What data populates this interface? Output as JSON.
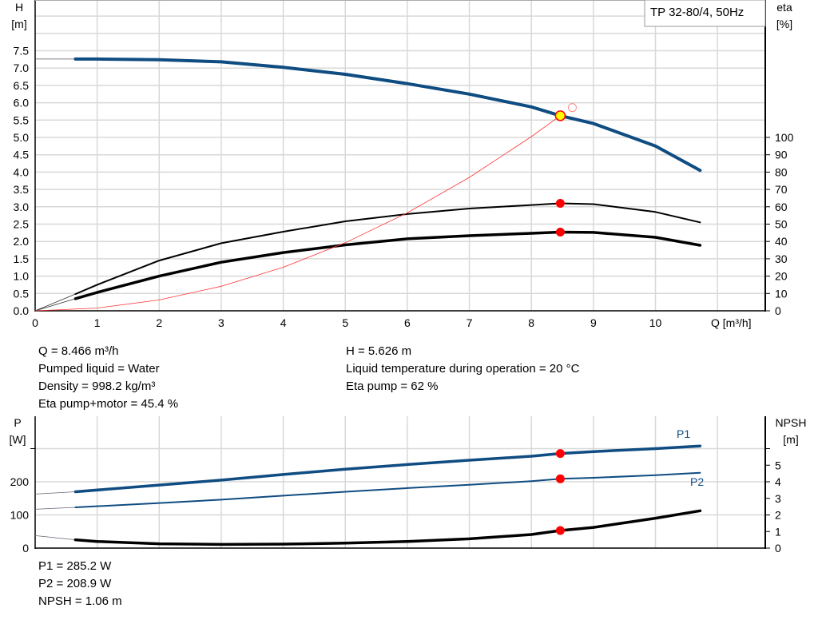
{
  "chart_data": [
    {
      "type": "line",
      "title": "TP 32-80/4, 50Hz",
      "xlabel": "Q [m³/h]",
      "ylabel_left": [
        "H",
        "[m]"
      ],
      "ylabel_right": [
        "eta",
        "[%]"
      ],
      "xlim": [
        0,
        11.77
      ],
      "ylim_left": [
        0,
        9
      ],
      "ylim_right_ticks": [
        0,
        10,
        20,
        30,
        40,
        50,
        60,
        70,
        80,
        90,
        100
      ],
      "x_ticks": [
        "0",
        "1",
        "2",
        "3",
        "4",
        "5",
        "6",
        "7",
        "8",
        "9",
        "10"
      ],
      "y_ticks_left": [
        "0.0",
        "0.5",
        "1.0",
        "1.5",
        "2.0",
        "2.5",
        "3.0",
        "3.5",
        "4.0",
        "4.5",
        "5.0",
        "5.5",
        "6.0",
        "6.5",
        "7.0",
        "7.5"
      ],
      "grid": true,
      "series": [
        {
          "key": "head",
          "axis": "left",
          "color": "#0f4c81",
          "x": [
            0.65,
            1,
            2,
            3,
            4,
            5,
            6,
            7,
            8,
            8.466,
            9,
            10,
            10.72
          ],
          "y": [
            7.26,
            7.26,
            7.24,
            7.18,
            7.02,
            6.82,
            6.55,
            6.25,
            5.88,
            5.626,
            5.4,
            4.75,
            4.05
          ],
          "extension": {
            "x": [
              0,
              0.65
            ],
            "y": [
              7.26,
              7.26
            ]
          }
        },
        {
          "key": "eta_pump",
          "axis": "right",
          "color": "#000000",
          "x": [
            0.65,
            1,
            2,
            3,
            4,
            5,
            6,
            7,
            8,
            8.466,
            9,
            10,
            10.72
          ],
          "y": [
            9.7,
            15,
            29,
            39,
            45.6,
            51.6,
            55.8,
            59,
            61,
            62,
            61.5,
            57,
            51
          ],
          "extension": {
            "x": [
              0,
              0.65
            ],
            "y": [
              0,
              9.7
            ]
          }
        },
        {
          "key": "eta_pump_motor",
          "axis": "right",
          "color": "#000000",
          "x": [
            0.65,
            1,
            2,
            3,
            4,
            5,
            6,
            7,
            8,
            8.466,
            9,
            10,
            10.72
          ],
          "y": [
            7,
            10.6,
            20,
            28,
            33.6,
            38,
            41.5,
            43.3,
            44.7,
            45.4,
            45.2,
            42.4,
            37.8
          ],
          "extension": {
            "x": [
              0,
              0.65
            ],
            "y": [
              0,
              7
            ]
          }
        },
        {
          "key": "system_curve",
          "axis": "left",
          "color": "#ff3333",
          "x": [
            0,
            1,
            2,
            3,
            4,
            5,
            6,
            7,
            8,
            8.466
          ],
          "y": [
            0,
            0.0785,
            0.314,
            0.707,
            1.256,
            1.963,
            2.826,
            3.847,
            5.024,
            5.626
          ]
        }
      ],
      "duty_point": {
        "Q": 8.466,
        "H": 5.626,
        "eta_pump": 62,
        "eta_pump_motor": 45.4,
        "color": "#ffff00"
      },
      "open_marker": {
        "Q": 8.66,
        "H": 5.86
      }
    },
    {
      "type": "line",
      "ylabel_left": [
        "P",
        "[W]"
      ],
      "ylabel_right": [
        "NPSH",
        "[m]"
      ],
      "xlim": [
        0,
        11.77
      ],
      "ylim_left": [
        0,
        400
      ],
      "y_ticks_left": [
        "0",
        "100",
        "200"
      ],
      "y_ticks_right": [
        "0",
        "1",
        "2",
        "3",
        "4",
        "5"
      ],
      "grid": true,
      "series": [
        {
          "key": "P1",
          "name": "P1",
          "axis": "left",
          "color": "#0f4c81",
          "x": [
            0.65,
            2,
            3,
            4,
            5,
            6,
            7,
            8,
            8.466,
            9,
            10,
            10.72
          ],
          "y": [
            170,
            190,
            205,
            222,
            238,
            252,
            265,
            277,
            285.2,
            291,
            300,
            308
          ],
          "extension": {
            "x": [
              0,
              0.65
            ],
            "y": [
              163,
              170
            ]
          }
        },
        {
          "key": "P2",
          "name": "P2",
          "axis": "left",
          "color": "#0f4c81",
          "x": [
            0.65,
            2,
            3,
            4,
            5,
            6,
            7,
            8,
            8.466,
            9,
            10,
            10.72
          ],
          "y": [
            123,
            136,
            146,
            158,
            170,
            181,
            191,
            202,
            208.9,
            212,
            220,
            227
          ],
          "extension": {
            "x": [
              0,
              0.65
            ],
            "y": [
              117,
              123
            ]
          }
        },
        {
          "key": "NPSH",
          "axis": "right",
          "color": "#000000",
          "x": [
            0.65,
            1,
            2,
            3,
            4,
            5,
            6,
            7,
            8,
            8.466,
            9,
            10,
            10.72
          ],
          "y": [
            0.5,
            0.4,
            0.26,
            0.22,
            0.24,
            0.3,
            0.4,
            0.56,
            0.82,
            1.06,
            1.25,
            1.8,
            2.25
          ],
          "extension": {
            "x": [
              0,
              0.65
            ],
            "y": [
              0.75,
              0.5
            ]
          }
        }
      ],
      "duty_point": {
        "Q": 8.466,
        "P1": 285.2,
        "P2": 208.9,
        "NPSH": 1.06,
        "color": "#ff0000"
      }
    }
  ],
  "info_top_left": [
    "Q = 8.466 m³/h",
    "Pumped liquid = Water",
    "Density = 998.2 kg/m³",
    "Eta pump+motor = 45.4 %"
  ],
  "info_top_right": [
    "H = 5.626 m",
    "Liquid temperature during operation = 20 °C",
    "Eta pump = 62 %"
  ],
  "info_bottom": [
    "P1 = 285.2 W",
    "P2 = 208.9 W",
    "NPSH = 1.06 m"
  ]
}
